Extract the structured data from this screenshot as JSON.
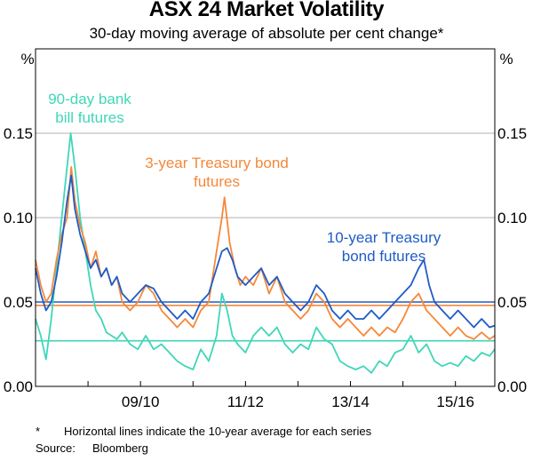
{
  "chart_data": {
    "type": "line",
    "title": "ASX 24 Market Volatility",
    "subtitle": "30-day moving average of absolute per cent change*",
    "y_unit_left": "%",
    "y_unit_right": "%",
    "ylim": [
      0,
      0.2
    ],
    "yticks": [
      "0.00",
      "0.05",
      "0.10",
      "0.15"
    ],
    "ytick_values": [
      0,
      0.05,
      0.1,
      0.15
    ],
    "xlim": [
      2008.0,
      2016.75
    ],
    "xticks": [
      "09/10",
      "11/12",
      "13/14",
      "15/16"
    ],
    "xtick_centers": [
      2010.0,
      2012.0,
      2014.0,
      2016.0
    ],
    "xtick_marks": [
      2009.0,
      2010.0,
      2011.0,
      2012.0,
      2013.0,
      2014.0,
      2015.0,
      2016.0
    ],
    "grid": true,
    "series": [
      {
        "name": "90-day bank bill futures",
        "label_lines": [
          "90-day bank",
          "bill futures"
        ],
        "color": "#40d6b8",
        "average": 0.027,
        "points": [
          [
            2008.0,
            0.04
          ],
          [
            2008.1,
            0.03
          ],
          [
            2008.2,
            0.016
          ],
          [
            2008.3,
            0.04
          ],
          [
            2008.4,
            0.07
          ],
          [
            2008.5,
            0.1
          ],
          [
            2008.6,
            0.13
          ],
          [
            2008.67,
            0.15
          ],
          [
            2008.75,
            0.13
          ],
          [
            2008.85,
            0.1
          ],
          [
            2008.95,
            0.08
          ],
          [
            2009.05,
            0.06
          ],
          [
            2009.15,
            0.045
          ],
          [
            2009.25,
            0.04
          ],
          [
            2009.35,
            0.032
          ],
          [
            2009.45,
            0.03
          ],
          [
            2009.55,
            0.028
          ],
          [
            2009.65,
            0.032
          ],
          [
            2009.8,
            0.025
          ],
          [
            2009.95,
            0.022
          ],
          [
            2010.1,
            0.03
          ],
          [
            2010.25,
            0.022
          ],
          [
            2010.4,
            0.025
          ],
          [
            2010.55,
            0.02
          ],
          [
            2010.7,
            0.015
          ],
          [
            2010.85,
            0.012
          ],
          [
            2011.0,
            0.01
          ],
          [
            2011.15,
            0.022
          ],
          [
            2011.3,
            0.015
          ],
          [
            2011.45,
            0.03
          ],
          [
            2011.55,
            0.055
          ],
          [
            2011.65,
            0.045
          ],
          [
            2011.75,
            0.03
          ],
          [
            2011.85,
            0.025
          ],
          [
            2012.0,
            0.02
          ],
          [
            2012.15,
            0.03
          ],
          [
            2012.3,
            0.035
          ],
          [
            2012.45,
            0.03
          ],
          [
            2012.6,
            0.035
          ],
          [
            2012.75,
            0.025
          ],
          [
            2012.9,
            0.02
          ],
          [
            2013.05,
            0.025
          ],
          [
            2013.2,
            0.022
          ],
          [
            2013.35,
            0.035
          ],
          [
            2013.5,
            0.028
          ],
          [
            2013.65,
            0.025
          ],
          [
            2013.8,
            0.015
          ],
          [
            2013.95,
            0.012
          ],
          [
            2014.1,
            0.01
          ],
          [
            2014.25,
            0.012
          ],
          [
            2014.4,
            0.008
          ],
          [
            2014.55,
            0.015
          ],
          [
            2014.7,
            0.012
          ],
          [
            2014.85,
            0.02
          ],
          [
            2015.0,
            0.022
          ],
          [
            2015.15,
            0.03
          ],
          [
            2015.3,
            0.02
          ],
          [
            2015.45,
            0.025
          ],
          [
            2015.6,
            0.015
          ],
          [
            2015.75,
            0.012
          ],
          [
            2015.9,
            0.014
          ],
          [
            2016.05,
            0.012
          ],
          [
            2016.2,
            0.018
          ],
          [
            2016.35,
            0.015
          ],
          [
            2016.5,
            0.02
          ],
          [
            2016.65,
            0.018
          ],
          [
            2016.75,
            0.022
          ]
        ]
      },
      {
        "name": "3-year Treasury bond futures",
        "label_lines": [
          "3-year Treasury bond",
          "futures"
        ],
        "color": "#f5883a",
        "average": 0.048,
        "points": [
          [
            2008.0,
            0.075
          ],
          [
            2008.1,
            0.06
          ],
          [
            2008.2,
            0.05
          ],
          [
            2008.3,
            0.055
          ],
          [
            2008.4,
            0.075
          ],
          [
            2008.5,
            0.09
          ],
          [
            2008.6,
            0.1
          ],
          [
            2008.68,
            0.13
          ],
          [
            2008.75,
            0.11
          ],
          [
            2008.85,
            0.095
          ],
          [
            2008.95,
            0.085
          ],
          [
            2009.05,
            0.07
          ],
          [
            2009.15,
            0.08
          ],
          [
            2009.25,
            0.065
          ],
          [
            2009.35,
            0.07
          ],
          [
            2009.45,
            0.06
          ],
          [
            2009.55,
            0.065
          ],
          [
            2009.65,
            0.05
          ],
          [
            2009.8,
            0.045
          ],
          [
            2009.95,
            0.05
          ],
          [
            2010.1,
            0.06
          ],
          [
            2010.25,
            0.055
          ],
          [
            2010.4,
            0.045
          ],
          [
            2010.55,
            0.04
          ],
          [
            2010.7,
            0.035
          ],
          [
            2010.85,
            0.04
          ],
          [
            2011.0,
            0.035
          ],
          [
            2011.15,
            0.045
          ],
          [
            2011.3,
            0.05
          ],
          [
            2011.45,
            0.08
          ],
          [
            2011.55,
            0.1
          ],
          [
            2011.6,
            0.112
          ],
          [
            2011.7,
            0.085
          ],
          [
            2011.8,
            0.07
          ],
          [
            2011.9,
            0.06
          ],
          [
            2012.0,
            0.065
          ],
          [
            2012.15,
            0.06
          ],
          [
            2012.3,
            0.07
          ],
          [
            2012.45,
            0.055
          ],
          [
            2012.6,
            0.065
          ],
          [
            2012.75,
            0.05
          ],
          [
            2012.9,
            0.045
          ],
          [
            2013.05,
            0.04
          ],
          [
            2013.2,
            0.045
          ],
          [
            2013.35,
            0.055
          ],
          [
            2013.5,
            0.05
          ],
          [
            2013.65,
            0.04
          ],
          [
            2013.8,
            0.035
          ],
          [
            2013.95,
            0.04
          ],
          [
            2014.1,
            0.035
          ],
          [
            2014.25,
            0.03
          ],
          [
            2014.4,
            0.035
          ],
          [
            2014.55,
            0.03
          ],
          [
            2014.7,
            0.035
          ],
          [
            2014.85,
            0.032
          ],
          [
            2015.0,
            0.04
          ],
          [
            2015.15,
            0.05
          ],
          [
            2015.3,
            0.055
          ],
          [
            2015.45,
            0.045
          ],
          [
            2015.6,
            0.04
          ],
          [
            2015.75,
            0.035
          ],
          [
            2015.9,
            0.03
          ],
          [
            2016.05,
            0.035
          ],
          [
            2016.2,
            0.03
          ],
          [
            2016.35,
            0.028
          ],
          [
            2016.5,
            0.032
          ],
          [
            2016.65,
            0.028
          ],
          [
            2016.75,
            0.03
          ]
        ]
      },
      {
        "name": "10-year Treasury bond futures",
        "label_lines": [
          "10-year Treasury",
          "bond futures"
        ],
        "color": "#1f5cc6",
        "average": 0.05,
        "points": [
          [
            2008.0,
            0.07
          ],
          [
            2008.1,
            0.055
          ],
          [
            2008.2,
            0.045
          ],
          [
            2008.3,
            0.05
          ],
          [
            2008.4,
            0.065
          ],
          [
            2008.5,
            0.085
          ],
          [
            2008.6,
            0.11
          ],
          [
            2008.68,
            0.125
          ],
          [
            2008.75,
            0.105
          ],
          [
            2008.85,
            0.09
          ],
          [
            2008.95,
            0.08
          ],
          [
            2009.05,
            0.07
          ],
          [
            2009.15,
            0.075
          ],
          [
            2009.25,
            0.065
          ],
          [
            2009.35,
            0.07
          ],
          [
            2009.45,
            0.06
          ],
          [
            2009.55,
            0.065
          ],
          [
            2009.65,
            0.055
          ],
          [
            2009.8,
            0.05
          ],
          [
            2009.95,
            0.055
          ],
          [
            2010.1,
            0.06
          ],
          [
            2010.25,
            0.058
          ],
          [
            2010.4,
            0.05
          ],
          [
            2010.55,
            0.045
          ],
          [
            2010.7,
            0.04
          ],
          [
            2010.85,
            0.045
          ],
          [
            2011.0,
            0.04
          ],
          [
            2011.15,
            0.05
          ],
          [
            2011.3,
            0.055
          ],
          [
            2011.45,
            0.07
          ],
          [
            2011.55,
            0.08
          ],
          [
            2011.65,
            0.082
          ],
          [
            2011.75,
            0.075
          ],
          [
            2011.85,
            0.065
          ],
          [
            2012.0,
            0.06
          ],
          [
            2012.15,
            0.065
          ],
          [
            2012.3,
            0.07
          ],
          [
            2012.45,
            0.06
          ],
          [
            2012.6,
            0.065
          ],
          [
            2012.75,
            0.055
          ],
          [
            2012.9,
            0.05
          ],
          [
            2013.05,
            0.045
          ],
          [
            2013.2,
            0.05
          ],
          [
            2013.35,
            0.06
          ],
          [
            2013.5,
            0.055
          ],
          [
            2013.65,
            0.045
          ],
          [
            2013.8,
            0.04
          ],
          [
            2013.95,
            0.045
          ],
          [
            2014.1,
            0.04
          ],
          [
            2014.25,
            0.04
          ],
          [
            2014.4,
            0.045
          ],
          [
            2014.55,
            0.04
          ],
          [
            2014.7,
            0.045
          ],
          [
            2014.85,
            0.05
          ],
          [
            2015.0,
            0.055
          ],
          [
            2015.15,
            0.06
          ],
          [
            2015.3,
            0.07
          ],
          [
            2015.4,
            0.075
          ],
          [
            2015.5,
            0.06
          ],
          [
            2015.6,
            0.05
          ],
          [
            2015.75,
            0.045
          ],
          [
            2015.9,
            0.04
          ],
          [
            2016.05,
            0.045
          ],
          [
            2016.2,
            0.04
          ],
          [
            2016.35,
            0.035
          ],
          [
            2016.5,
            0.04
          ],
          [
            2016.65,
            0.035
          ],
          [
            2016.75,
            0.036
          ]
        ]
      }
    ]
  },
  "footnote": {
    "marker": "*",
    "text": "Horizontal lines indicate the 10-year average for each series"
  },
  "source": {
    "label": "Source:",
    "text": "Bloomberg"
  }
}
